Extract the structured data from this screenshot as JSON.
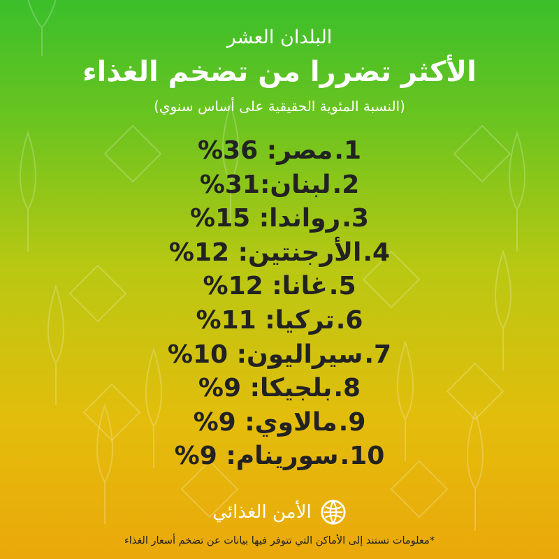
{
  "header": {
    "title_line1": "البلدان العشر",
    "title_line2": "الأكثر تضررا من تضخم الغذاء",
    "subtitle": "(النسبة المئوية الحقيقية على أساس سنوي)"
  },
  "rankings": [
    {
      "number": "1.",
      "text": "مصر: 36%"
    },
    {
      "number": "2.",
      "text": "لبنان:31%"
    },
    {
      "number": "3.",
      "text": "رواندا: 15%"
    },
    {
      "number": "4.",
      "text": "الأرجنتين: 12%"
    },
    {
      "number": "5.",
      "text": "غانا: 12%"
    },
    {
      "number": "6.",
      "text": "تركيا: 11%"
    },
    {
      "number": "7.",
      "text": "سيراليون: 10%"
    },
    {
      "number": "8.",
      "text": "بلجيكا: 9%"
    },
    {
      "number": "9.",
      "text": "مالاوي: 9%"
    },
    {
      "number": "10.",
      "text": "سورينام: 9%"
    }
  ],
  "footer": {
    "label": "الأمن الغذائي",
    "icon": "globe-logo-icon",
    "note": "*معلومات تستند إلى الأماكن التي تتوفر فيها بيانات عن تضخم أسعار الغذاء"
  },
  "colors": {
    "gradient_top": "#3bbf2b",
    "gradient_bottom": "#eba80a",
    "title": "#ffffff",
    "text": "#222222"
  }
}
